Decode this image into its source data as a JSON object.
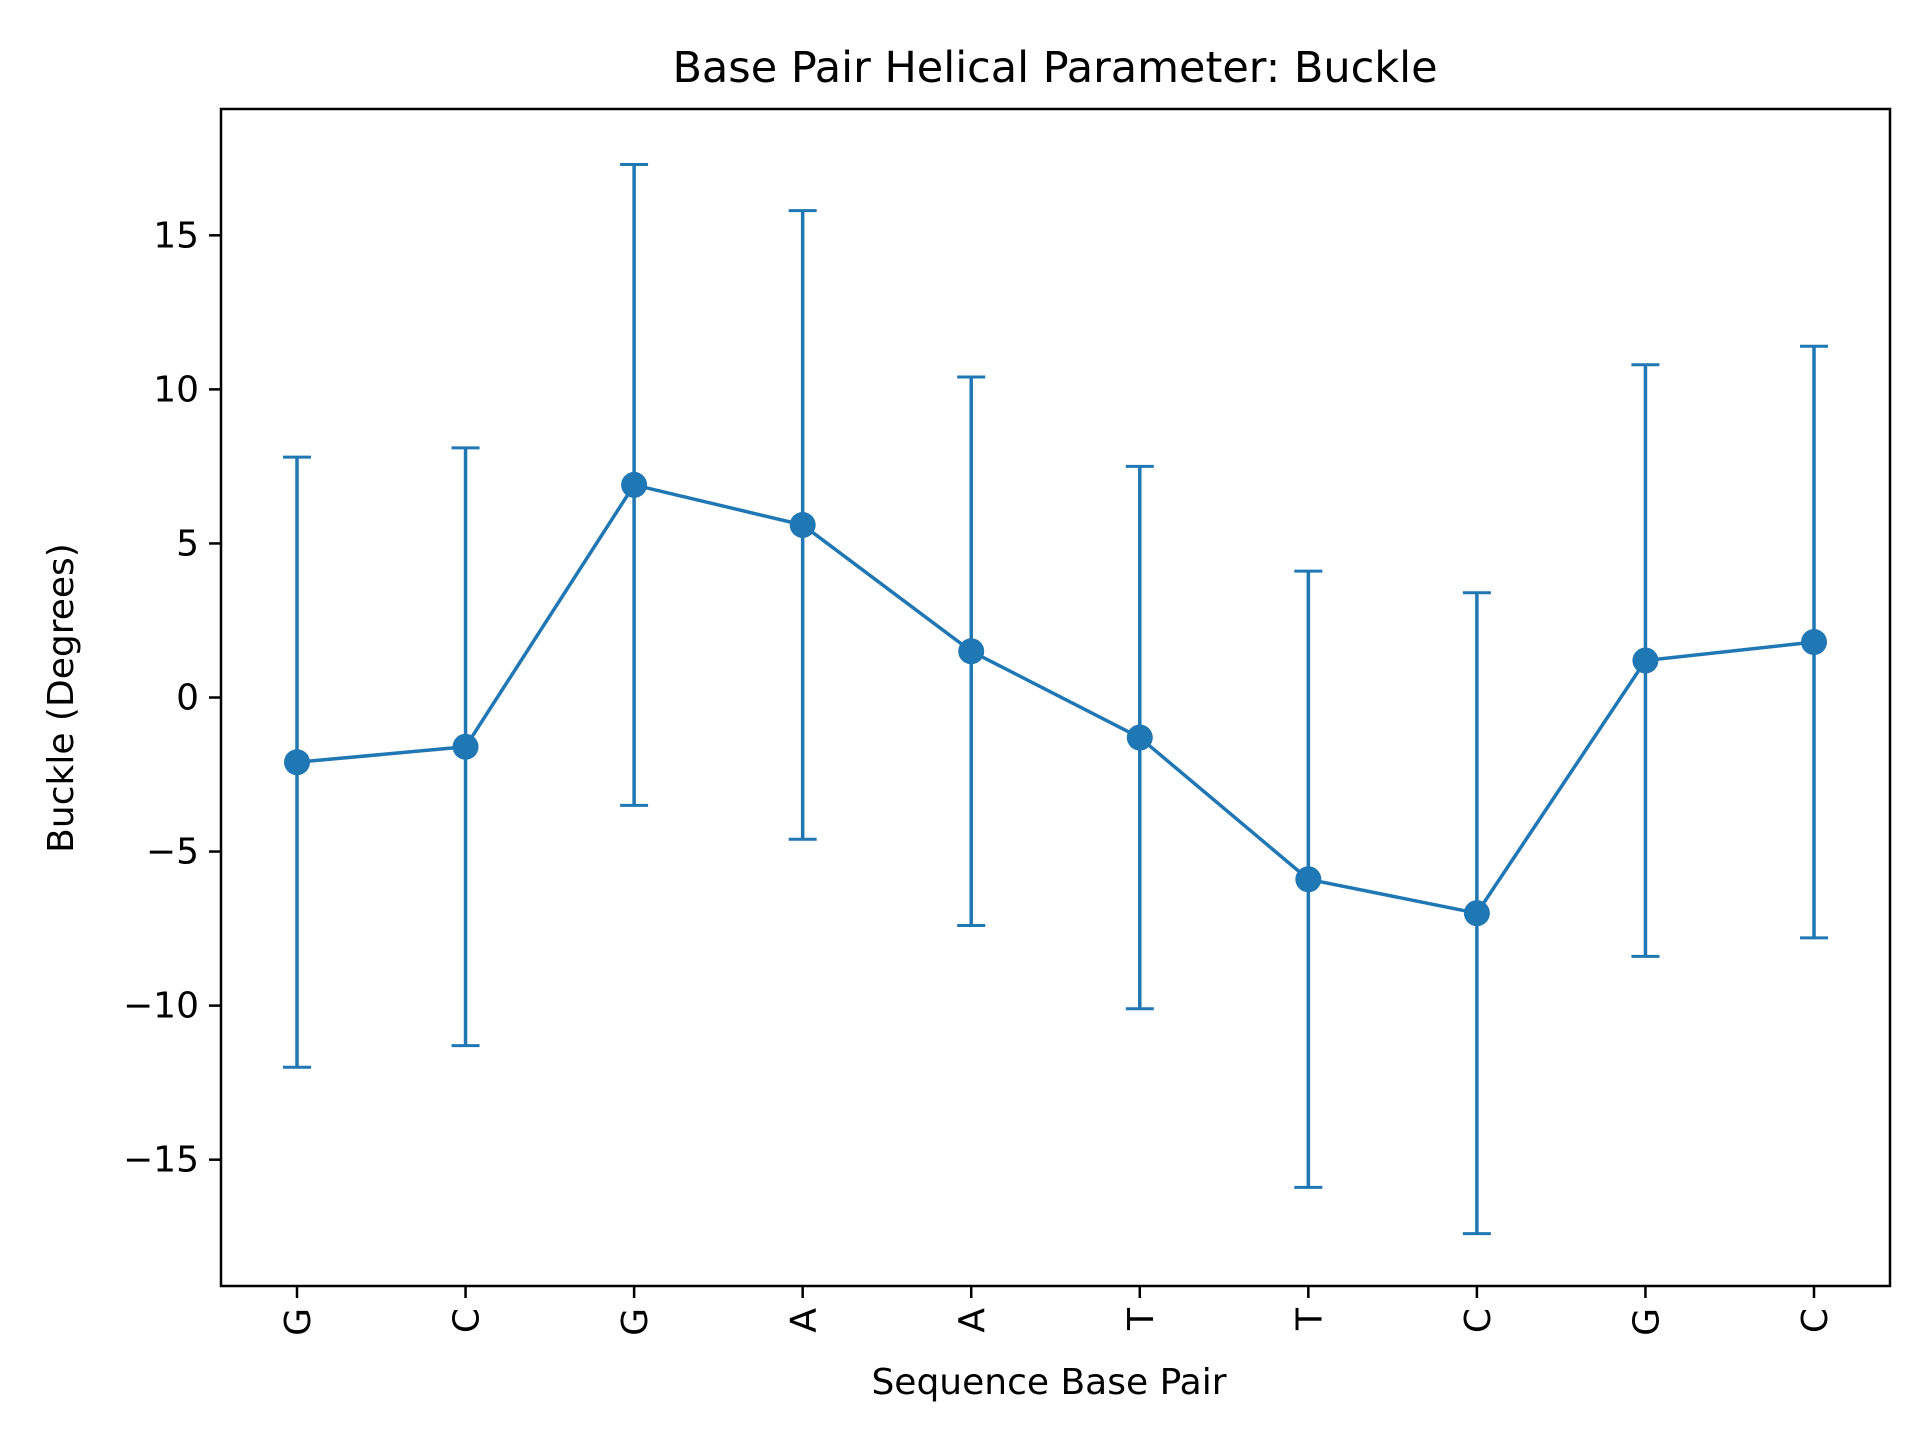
{
  "chart_data": {
    "type": "line",
    "title": "Base Pair  Helical Parameter: Buckle",
    "xlabel": "Sequence Base Pair",
    "ylabel": "Buckle (Degrees)",
    "categories": [
      "G",
      "C",
      "G",
      "A",
      "A",
      "T",
      "T",
      "C",
      "G",
      "C"
    ],
    "ylim": [
      -19.1,
      19.1
    ],
    "yticks": [
      -15,
      -10,
      -5,
      0,
      5,
      10,
      15
    ],
    "ytick_labels": [
      "−15",
      "−10",
      "−5",
      "0",
      "5",
      "10",
      "15"
    ],
    "grid": false,
    "series": [
      {
        "values": [
          -2.1,
          -1.6,
          6.9,
          5.6,
          1.5,
          -1.3,
          -5.9,
          -7.0,
          1.2,
          1.8
        ],
        "error": [
          9.9,
          9.7,
          10.4,
          10.2,
          8.9,
          8.8,
          10.0,
          10.4,
          9.6,
          9.6
        ],
        "color": "#1f77b4",
        "marker": "circle"
      }
    ]
  }
}
